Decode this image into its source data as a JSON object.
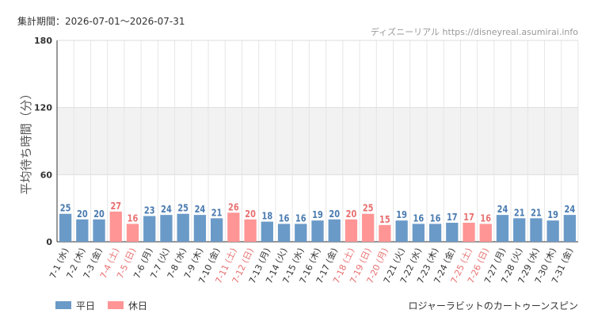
{
  "header": {
    "period": "集計期間：2026-07-01～2026-07-31",
    "source": "ディズニーリアル https://disneyreal.asumirai.info",
    "attraction": "ロジャーラビットのカートゥーンスピン"
  },
  "colors": {
    "weekday": "#6a9ac8",
    "holiday": "#ff9595",
    "holiday_label": "#e87070",
    "value_weekday": "#4a7bb0",
    "value_holiday": "#e87070",
    "band": "#f2f2f2",
    "grid": "#e6e6e6",
    "axis": "#333333"
  },
  "chart_data": {
    "type": "bar",
    "ylabel": "平均待ち時間（分）",
    "ylim": [
      0,
      180
    ],
    "yticks": [
      0,
      60,
      120,
      180
    ],
    "bands": [
      [
        60,
        120
      ]
    ],
    "grid": true,
    "legend_position": "bottom-left",
    "categories": [
      "7-1 (水)",
      "7-2 (木)",
      "7-3 (金)",
      "7-4 (土)",
      "7-5 (日)",
      "7-6 (月)",
      "7-7 (火)",
      "7-8 (水)",
      "7-9 (木)",
      "7-10 (金)",
      "7-11 (土)",
      "7-12 (日)",
      "7-13 (月)",
      "7-14 (火)",
      "7-15 (水)",
      "7-16 (木)",
      "7-17 (金)",
      "7-18 (土)",
      "7-19 (日)",
      "7-20 (月)",
      "7-21 (火)",
      "7-22 (水)",
      "7-23 (木)",
      "7-24 (金)",
      "7-25 (土)",
      "7-26 (日)",
      "7-27 (月)",
      "7-28 (火)",
      "7-29 (水)",
      "7-30 (木)",
      "7-31 (金)"
    ],
    "values": [
      25,
      20,
      20,
      27,
      16,
      23,
      24,
      25,
      24,
      21,
      26,
      20,
      18,
      16,
      16,
      19,
      20,
      20,
      25,
      15,
      19,
      16,
      16,
      17,
      17,
      16,
      24,
      21,
      21,
      19,
      24
    ],
    "holiday": [
      false,
      false,
      false,
      true,
      true,
      false,
      false,
      false,
      false,
      false,
      true,
      true,
      false,
      false,
      false,
      false,
      false,
      true,
      true,
      true,
      false,
      false,
      false,
      false,
      true,
      true,
      false,
      false,
      false,
      false,
      false
    ],
    "legend": [
      {
        "key": "weekday",
        "label": "平日"
      },
      {
        "key": "holiday",
        "label": "休日"
      }
    ]
  }
}
